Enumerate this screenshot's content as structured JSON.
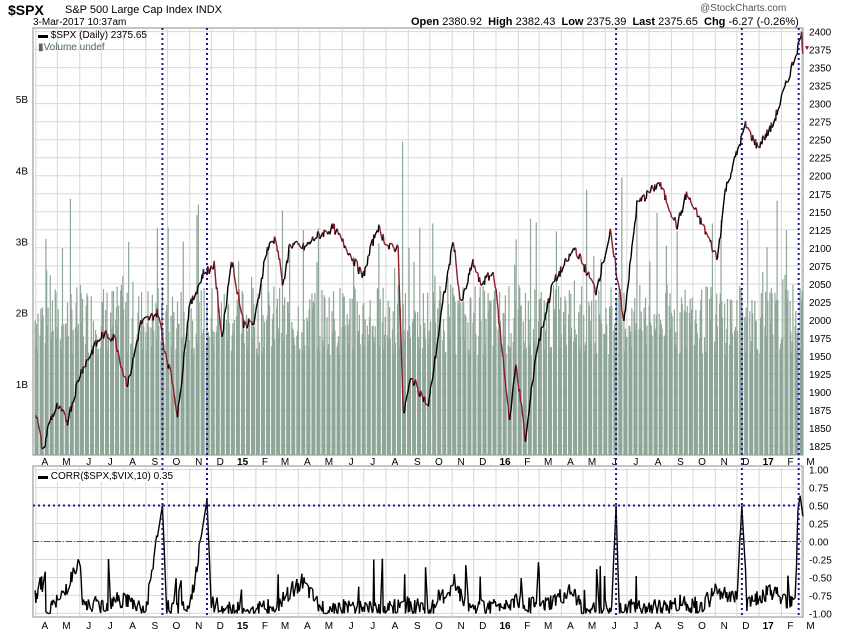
{
  "header": {
    "ticker": "$SPX",
    "name": "S&P 500 Large Cap Index",
    "exchange": "INDX",
    "date": "3-Mar-2017 10:37am",
    "watermark": "@StockCharts.com",
    "quote": {
      "open_label": "Open",
      "open": "2380.92",
      "high_label": "High",
      "high": "2382.43",
      "low_label": "Low",
      "low": "2375.39",
      "last_label": "Last",
      "last": "2375.65",
      "chg_label": "Chg",
      "chg": "-6.27 (-0.26%)"
    }
  },
  "legend": {
    "price": "$SPX (Daily) 2375.65",
    "volume": "Volume undef",
    "corr": "CORR($SPX,$VIX,10) 0.35"
  },
  "colors": {
    "up": "#000000",
    "down": "#8b1a2b",
    "volume": "#8fa698",
    "grid": "#d8d8d8",
    "marker": "#1a1a8c"
  },
  "x_axis_labels": [
    "A",
    "M",
    "J",
    "J",
    "A",
    "S",
    "O",
    "N",
    "D",
    "15",
    "F",
    "M",
    "A",
    "M",
    "J",
    "J",
    "A",
    "S",
    "O",
    "N",
    "D",
    "16",
    "F",
    "M",
    "A",
    "M",
    "J",
    "J",
    "A",
    "S",
    "O",
    "N",
    "D",
    "17",
    "F",
    "M"
  ],
  "chart_data": [
    {
      "type": "line",
      "title": "$SPX (Daily) 2375.65",
      "x": [
        "2014-04",
        "2014-05",
        "2014-06",
        "2014-07",
        "2014-08",
        "2014-09",
        "2014-10",
        "2014-11",
        "2014-12",
        "2015-01",
        "2015-02",
        "2015-03",
        "2015-04",
        "2015-05",
        "2015-06",
        "2015-07",
        "2015-08",
        "2015-09",
        "2015-10",
        "2015-11",
        "2015-12",
        "2016-01",
        "2016-02",
        "2016-03",
        "2016-04",
        "2016-05",
        "2016-06",
        "2016-07",
        "2016-08",
        "2016-09",
        "2016-10",
        "2016-11",
        "2016-12",
        "2017-01",
        "2017-02",
        "2017-03"
      ],
      "points": [
        [
          "2014-04-01",
          1872
        ],
        [
          "2014-04-11",
          1816
        ],
        [
          "2014-04-20",
          1860
        ],
        [
          "2014-05-01",
          1880
        ],
        [
          "2014-05-15",
          1860
        ],
        [
          "2014-06-01",
          1925
        ],
        [
          "2014-06-20",
          1960
        ],
        [
          "2014-07-03",
          1980
        ],
        [
          "2014-07-20",
          1975
        ],
        [
          "2014-08-01",
          1925
        ],
        [
          "2014-08-07",
          1910
        ],
        [
          "2014-08-25",
          1995
        ],
        [
          "2014-09-18",
          2010
        ],
        [
          "2014-09-26",
          1965
        ],
        [
          "2014-10-10",
          1905
        ],
        [
          "2014-10-15",
          1865
        ],
        [
          "2014-10-31",
          2015
        ],
        [
          "2014-11-20",
          2065
        ],
        [
          "2014-12-05",
          2075
        ],
        [
          "2014-12-16",
          1975
        ],
        [
          "2014-12-29",
          2085
        ],
        [
          "2015-01-15",
          1995
        ],
        [
          "2015-01-30",
          1995
        ],
        [
          "2015-02-15",
          2095
        ],
        [
          "2015-03-01",
          2115
        ],
        [
          "2015-03-11",
          2045
        ],
        [
          "2015-03-20",
          2105
        ],
        [
          "2015-04-10",
          2100
        ],
        [
          "2015-04-25",
          2115
        ],
        [
          "2015-05-20",
          2128
        ],
        [
          "2015-06-10",
          2095
        ],
        [
          "2015-06-30",
          2060
        ],
        [
          "2015-07-20",
          2130
        ],
        [
          "2015-08-05",
          2100
        ],
        [
          "2015-08-18",
          2100
        ],
        [
          "2015-08-25",
          1868
        ],
        [
          "2015-09-05",
          1920
        ],
        [
          "2015-09-29",
          1880
        ],
        [
          "2015-10-20",
          2030
        ],
        [
          "2015-11-03",
          2110
        ],
        [
          "2015-11-13",
          2020
        ],
        [
          "2015-11-30",
          2080
        ],
        [
          "2015-12-10",
          2050
        ],
        [
          "2015-12-29",
          2065
        ],
        [
          "2016-01-20",
          1860
        ],
        [
          "2016-01-29",
          1940
        ],
        [
          "2016-02-11",
          1830
        ],
        [
          "2016-02-25",
          1950
        ],
        [
          "2016-03-20",
          2050
        ],
        [
          "2016-04-20",
          2100
        ],
        [
          "2016-05-19",
          2040
        ],
        [
          "2016-06-08",
          2120
        ],
        [
          "2016-06-27",
          2000
        ],
        [
          "2016-07-15",
          2160
        ],
        [
          "2016-08-15",
          2190
        ],
        [
          "2016-09-09",
          2130
        ],
        [
          "2016-09-22",
          2175
        ],
        [
          "2016-10-15",
          2130
        ],
        [
          "2016-11-04",
          2085
        ],
        [
          "2016-11-15",
          2180
        ],
        [
          "2016-12-13",
          2270
        ],
        [
          "2016-12-30",
          2240
        ],
        [
          "2017-01-20",
          2270
        ],
        [
          "2017-02-15",
          2350
        ],
        [
          "2017-03-01",
          2395
        ],
        [
          "2017-03-03",
          2376
        ]
      ],
      "ylim": [
        1812.5,
        2405
      ],
      "yticks": [
        1825,
        1850,
        1875,
        1900,
        1925,
        1950,
        1975,
        2000,
        2025,
        2050,
        2075,
        2100,
        2125,
        2150,
        2175,
        2200,
        2225,
        2250,
        2275,
        2300,
        2325,
        2350,
        2375,
        2400
      ]
    },
    {
      "type": "bar",
      "title": "Volume undef",
      "ylim": [
        0,
        6.0
      ],
      "yticks": [
        "1B",
        "2B",
        "3B",
        "4B",
        "5B"
      ],
      "typical_range": [
        1.4,
        2.4
      ],
      "spikes": [
        [
          "2015-08-24",
          4.4
        ],
        [
          "2016-06-24",
          3.9
        ],
        [
          "2016-11-09",
          3.3
        ],
        [
          "2016-12-16",
          3.3
        ]
      ]
    },
    {
      "type": "line",
      "title": "CORR($SPX,$VIX,10) 0.35",
      "points": [
        [
          "2014-04-01",
          -0.75
        ],
        [
          "2014-04-08",
          -0.55
        ],
        [
          "2014-04-15",
          -0.95
        ],
        [
          "2014-05-01",
          -0.85
        ],
        [
          "2014-06-01",
          -0.3
        ],
        [
          "2014-06-05",
          -0.9
        ],
        [
          "2014-07-01",
          -0.88
        ],
        [
          "2014-08-01",
          -0.8
        ],
        [
          "2014-09-01",
          -0.95
        ],
        [
          "2014-09-24",
          0.5
        ],
        [
          "2014-09-30",
          -0.92
        ],
        [
          "2014-10-20",
          -0.95
        ],
        [
          "2014-11-01",
          -0.95
        ],
        [
          "2014-11-25",
          0.58
        ],
        [
          "2014-12-01",
          -0.88
        ],
        [
          "2015-01-01",
          -0.95
        ],
        [
          "2015-03-01",
          -0.92
        ],
        [
          "2015-04-05",
          -0.55
        ],
        [
          "2015-05-01",
          -0.93
        ],
        [
          "2015-07-01",
          -0.9
        ],
        [
          "2015-08-01",
          -0.95
        ],
        [
          "2015-09-01",
          -0.88
        ],
        [
          "2015-10-01",
          -0.95
        ],
        [
          "2015-11-01",
          -0.65
        ],
        [
          "2015-12-01",
          -0.92
        ],
        [
          "2016-01-01",
          -0.9
        ],
        [
          "2016-02-01",
          -0.8
        ],
        [
          "2016-03-01",
          -0.93
        ],
        [
          "2016-04-15",
          -0.7
        ],
        [
          "2016-05-01",
          -0.93
        ],
        [
          "2016-06-10",
          -0.94
        ],
        [
          "2016-06-16",
          0.5
        ],
        [
          "2016-06-20",
          -0.92
        ],
        [
          "2016-07-15",
          -0.92
        ],
        [
          "2016-08-15",
          -0.93
        ],
        [
          "2016-09-15",
          -0.85
        ],
        [
          "2016-10-15",
          -0.9
        ],
        [
          "2016-11-01",
          -0.7
        ],
        [
          "2016-12-01",
          -0.8
        ],
        [
          "2016-12-08",
          0.5
        ],
        [
          "2016-12-15",
          -0.85
        ],
        [
          "2017-01-15",
          -0.7
        ],
        [
          "2017-02-20",
          -0.88
        ],
        [
          "2017-02-25",
          0.78
        ],
        [
          "2017-03-03",
          0.35
        ]
      ],
      "ylim": [
        -1.05,
        1.05
      ],
      "yticks": [
        "1.00",
        "0.75",
        "0.50",
        "0.25",
        "0.00",
        "-0.25",
        "-0.50",
        "-0.75",
        "-1.00"
      ],
      "reference_lines": [
        0.5,
        0.0
      ]
    }
  ],
  "markers": [
    "2014-09-24",
    "2014-11-25",
    "2016-06-16",
    "2016-12-08",
    "2017-02-25"
  ]
}
